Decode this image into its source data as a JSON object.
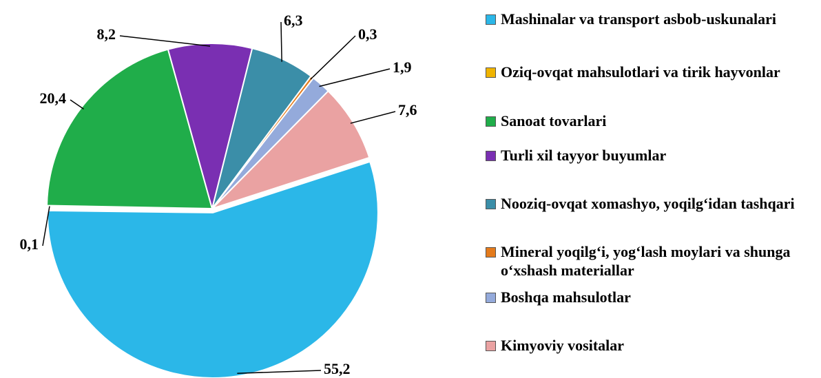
{
  "chart_data": {
    "type": "pie",
    "categories": [
      "Mashinalar va transport asbob-uskunalari",
      "Oziq-ovqat mahsulotlari va tirik hayvonlar",
      "Sanoat tovarlari",
      "Turli xil tayyor buyumlar",
      "Nooziq-ovqat xomashyo, yoqilg‘idan tashqari",
      "Mineral yoqilg‘i, yog‘lash moylari va shunga o‘xshash materiallar",
      "Boshqa mahsulotlar",
      "Kimyoviy vositalar"
    ],
    "values": [
      55.2,
      0.1,
      20.4,
      8.2,
      6.3,
      0.3,
      1.9,
      7.6
    ],
    "value_labels": [
      "55,2",
      "0,1",
      "20,4",
      "8,2",
      "6,3",
      "0,3",
      "1,9",
      "7,6"
    ],
    "colors": [
      "#2bb7e8",
      "#f0b400",
      "#20ad4a",
      "#7a2fb2",
      "#3b8ea8",
      "#e47b1c",
      "#94aadb",
      "#eaa2a2"
    ],
    "legend": "right"
  }
}
